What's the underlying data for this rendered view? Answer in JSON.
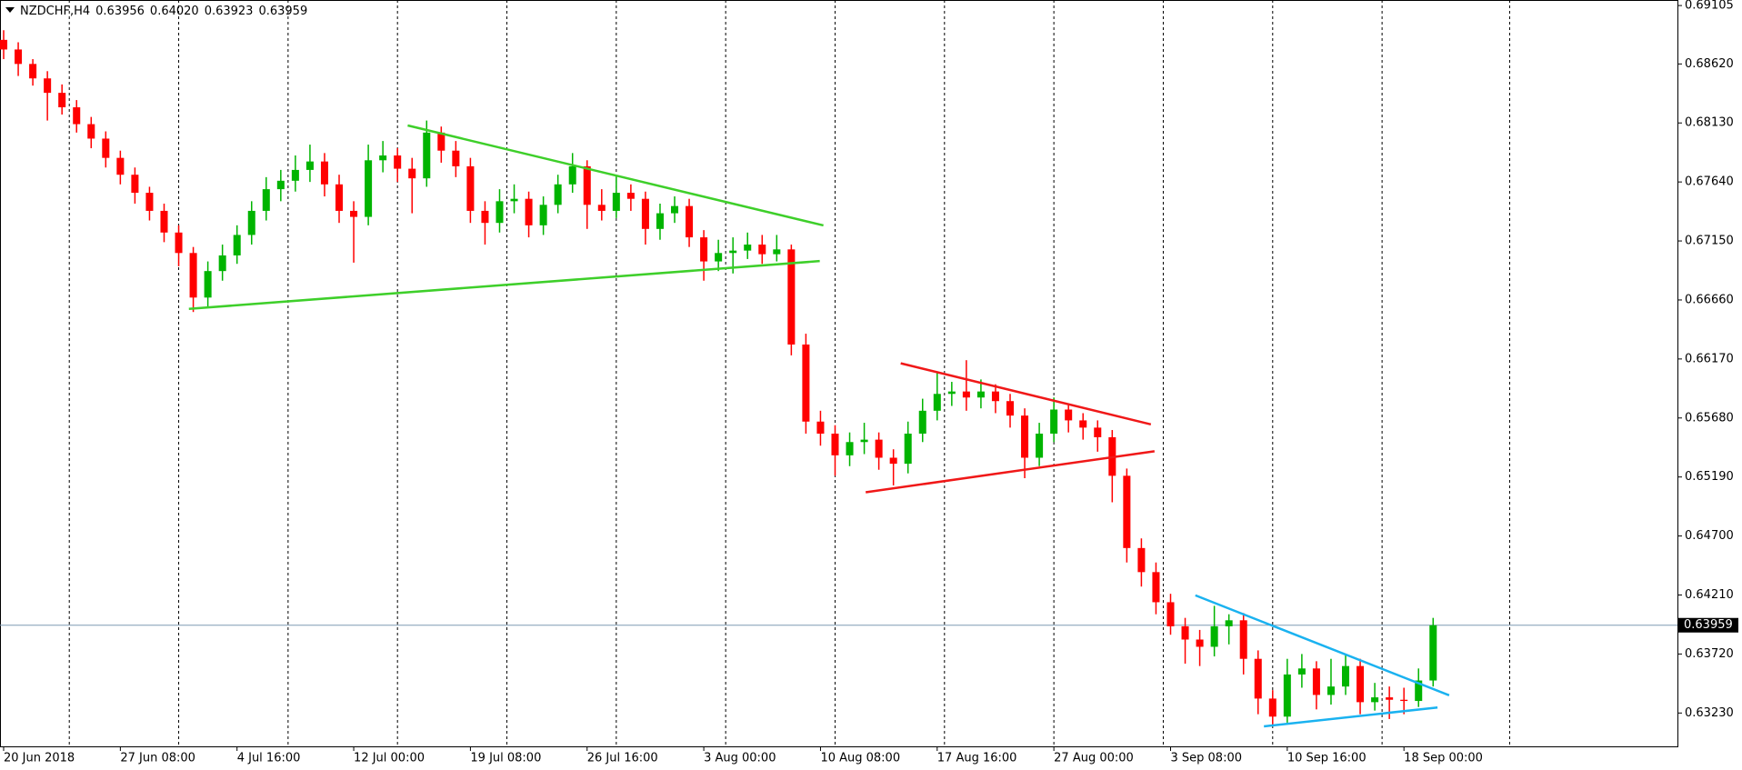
{
  "chart_data": {
    "type": "candlestick",
    "title": "NZDCHF,H4",
    "quote": [
      0.63956,
      {
        "value": 0.6402,
        "label": "0.64020"
      },
      0.63923,
      0.63959
    ],
    "bull_color": "#00b400",
    "bear_color": "#ff0000",
    "candles": [
      [
        0.6882,
        0.689,
        0.6866,
        0.6874
      ],
      [
        0.6874,
        0.688,
        0.6852,
        0.6862
      ],
      [
        0.6862,
        0.6866,
        0.6844,
        0.685
      ],
      [
        0.685,
        0.6856,
        0.6815,
        0.6838
      ],
      [
        0.6838,
        0.6845,
        0.682,
        0.6826
      ],
      [
        0.6826,
        0.6832,
        0.6805,
        0.6812
      ],
      [
        0.6812,
        0.6818,
        0.6792,
        0.68
      ],
      [
        0.68,
        0.6806,
        0.6776,
        0.6784
      ],
      [
        0.6784,
        0.679,
        0.6762,
        0.677
      ],
      [
        0.677,
        0.6776,
        0.6746,
        0.6755
      ],
      [
        0.6755,
        0.676,
        0.6732,
        0.674
      ],
      [
        0.674,
        0.6746,
        0.6714,
        0.6722
      ],
      [
        0.6722,
        0.6728,
        0.6694,
        0.6705
      ],
      [
        0.6705,
        0.671,
        0.6656,
        0.6668
      ],
      [
        0.6668,
        0.6698,
        0.666,
        0.669
      ],
      [
        0.669,
        0.6712,
        0.6682,
        0.6703
      ],
      [
        0.6703,
        0.6728,
        0.6696,
        0.672
      ],
      [
        0.672,
        0.6748,
        0.6712,
        0.674
      ],
      [
        0.674,
        0.6768,
        0.6732,
        0.6758
      ],
      [
        0.6758,
        0.6774,
        0.6748,
        0.6765
      ],
      [
        0.6765,
        0.6786,
        0.6756,
        0.6774
      ],
      [
        0.6774,
        0.6795,
        0.6764,
        0.6781
      ],
      [
        0.6781,
        0.6788,
        0.6752,
        0.6762
      ],
      [
        0.6762,
        0.677,
        0.673,
        0.674
      ],
      [
        0.674,
        0.6748,
        0.6697,
        0.6735
      ],
      [
        0.6735,
        0.6795,
        0.6728,
        0.6782
      ],
      [
        0.6782,
        0.6798,
        0.6772,
        0.6786
      ],
      [
        0.6786,
        0.6792,
        0.6764,
        0.6775
      ],
      [
        0.6775,
        0.6784,
        0.6738,
        0.6767
      ],
      [
        0.6767,
        0.6815,
        0.676,
        0.6805
      ],
      [
        0.6805,
        0.681,
        0.678,
        0.679
      ],
      [
        0.679,
        0.6798,
        0.6768,
        0.6777
      ],
      [
        0.6777,
        0.6784,
        0.673,
        0.674
      ],
      [
        0.674,
        0.6748,
        0.6712,
        0.673
      ],
      [
        0.673,
        0.6758,
        0.6722,
        0.6748
      ],
      [
        0.6748,
        0.6762,
        0.6738,
        0.675
      ],
      [
        0.675,
        0.6756,
        0.6718,
        0.6728
      ],
      [
        0.6728,
        0.6752,
        0.672,
        0.6745
      ],
      [
        0.6745,
        0.677,
        0.6738,
        0.6762
      ],
      [
        0.6762,
        0.6788,
        0.6755,
        0.6777
      ],
      [
        0.6777,
        0.6782,
        0.6725,
        0.6745
      ],
      [
        0.6745,
        0.6758,
        0.6732,
        0.674
      ],
      [
        0.674,
        0.677,
        0.6734,
        0.6755
      ],
      [
        0.6755,
        0.6762,
        0.674,
        0.675
      ],
      [
        0.675,
        0.6756,
        0.6712,
        0.6725
      ],
      [
        0.6725,
        0.6746,
        0.6716,
        0.6738
      ],
      [
        0.6738,
        0.6752,
        0.673,
        0.6744
      ],
      [
        0.6744,
        0.675,
        0.671,
        0.6718
      ],
      [
        0.6718,
        0.6724,
        0.6682,
        0.6698
      ],
      [
        0.6698,
        0.6716,
        0.669,
        0.6705
      ],
      [
        0.6705,
        0.6718,
        0.6688,
        0.6707
      ],
      [
        0.6707,
        0.6722,
        0.67,
        0.6712
      ],
      [
        0.6712,
        0.672,
        0.6696,
        0.6704
      ],
      [
        0.6704,
        0.672,
        0.6698,
        0.6708
      ],
      [
        0.6708,
        0.6712,
        0.662,
        0.6629
      ],
      [
        0.6629,
        0.6638,
        0.6555,
        0.6565
      ],
      [
        0.6565,
        0.6574,
        0.6545,
        0.6555
      ],
      [
        0.6555,
        0.6562,
        0.652,
        0.6537
      ],
      [
        0.6537,
        0.6556,
        0.6528,
        0.6548
      ],
      [
        0.6548,
        0.6564,
        0.6538,
        0.655
      ],
      [
        0.655,
        0.6556,
        0.6525,
        0.6535
      ],
      [
        0.6535,
        0.6542,
        0.6512,
        0.653
      ],
      [
        0.653,
        0.6565,
        0.6522,
        0.6555
      ],
      [
        0.6555,
        0.6584,
        0.6548,
        0.6574
      ],
      [
        0.6574,
        0.6606,
        0.6566,
        0.6588
      ],
      [
        0.6588,
        0.6598,
        0.6578,
        0.659
      ],
      [
        0.659,
        0.6616,
        0.6574,
        0.6585
      ],
      [
        0.6585,
        0.66,
        0.6576,
        0.659
      ],
      [
        0.659,
        0.6596,
        0.6572,
        0.6582
      ],
      [
        0.6582,
        0.6588,
        0.656,
        0.657
      ],
      [
        0.657,
        0.6576,
        0.6518,
        0.6535
      ],
      [
        0.6535,
        0.6564,
        0.6528,
        0.6555
      ],
      [
        0.6555,
        0.6585,
        0.6548,
        0.6575
      ],
      [
        0.6575,
        0.658,
        0.6556,
        0.6566
      ],
      [
        0.6566,
        0.6572,
        0.655,
        0.656
      ],
      [
        0.656,
        0.6566,
        0.654,
        0.6552
      ],
      [
        0.6552,
        0.6558,
        0.6498,
        0.652
      ],
      [
        0.652,
        0.6526,
        0.6448,
        0.646
      ],
      [
        0.646,
        0.6468,
        0.6428,
        0.644
      ],
      [
        0.644,
        0.6448,
        0.6405,
        0.6415
      ],
      [
        0.6415,
        0.6422,
        0.6388,
        0.6395
      ],
      [
        0.6395,
        0.6402,
        0.6364,
        0.6384
      ],
      [
        0.6384,
        0.6392,
        0.6362,
        0.6378
      ],
      [
        0.6378,
        0.6412,
        0.637,
        0.6395
      ],
      [
        0.6395,
        0.6405,
        0.638,
        0.64
      ],
      [
        0.64,
        0.6406,
        0.6355,
        0.6368
      ],
      [
        0.6368,
        0.6375,
        0.6322,
        0.6335
      ],
      [
        0.6335,
        0.6342,
        0.6312,
        0.632
      ],
      [
        0.632,
        0.6368,
        0.6315,
        0.6355
      ],
      [
        0.6355,
        0.6372,
        0.6344,
        0.636
      ],
      [
        0.636,
        0.6366,
        0.6326,
        0.6338
      ],
      [
        0.6338,
        0.6368,
        0.633,
        0.6345
      ],
      [
        0.6345,
        0.6372,
        0.6338,
        0.6362
      ],
      [
        0.6362,
        0.6368,
        0.6322,
        0.6332
      ],
      [
        0.6332,
        0.6348,
        0.6325,
        0.6336
      ],
      [
        0.6336,
        0.6345,
        0.6318,
        0.6334
      ],
      [
        0.6334,
        0.6344,
        0.6322,
        0.6333
      ],
      [
        0.6333,
        0.636,
        0.6328,
        0.635
      ],
      [
        0.635,
        0.6402,
        0.6345,
        0.63959
      ]
    ],
    "xlim": [
      -0.25,
      114.75
    ],
    "xticks": [
      {
        "value": 0,
        "label": "20 Jun 2018"
      },
      {
        "value": 8,
        "label": "27 Jun 08:00"
      },
      {
        "value": 16,
        "label": "4 Jul 16:00"
      },
      {
        "value": 24,
        "label": "12 Jul 00:00"
      },
      {
        "value": 32,
        "label": "19 Jul 08:00"
      },
      {
        "value": 40,
        "label": "26 Jul 16:00"
      },
      {
        "value": 48,
        "label": "3 Aug 00:00"
      },
      {
        "value": 56,
        "label": "10 Aug 08:00"
      },
      {
        "value": 64,
        "label": "17 Aug 16:00"
      },
      {
        "value": 72,
        "label": "27 Aug 00:00"
      },
      {
        "value": 80,
        "label": "3 Sep 08:00"
      },
      {
        "value": 88,
        "label": "10 Sep 16:00"
      },
      {
        "value": 96,
        "label": "18 Sep 00:00"
      }
    ],
    "xgrid": [
      4.5,
      12,
      19.5,
      27,
      34.5,
      42,
      49.5,
      57,
      64.5,
      72,
      79.5,
      87,
      94.5,
      103.25
    ],
    "ylim": [
      0.62953,
      0.69151
    ],
    "yticks": [
      0.69105,
      {
        "value": 0.6862,
        "label": "0.68620"
      },
      {
        "value": 0.6813,
        "label": "0.68130"
      },
      {
        "value": 0.6764,
        "label": "0.67640"
      },
      {
        "value": 0.6715,
        "label": "0.67150"
      },
      {
        "value": 0.6666,
        "label": "0.66660"
      },
      {
        "value": 0.6617,
        "label": "0.66170"
      },
      {
        "value": 0.6568,
        "label": "0.65680"
      },
      {
        "value": 0.6519,
        "label": "0.65190"
      },
      {
        "value": 0.647,
        "label": "0.64700"
      },
      {
        "value": 0.6421,
        "label": "0.64210"
      },
      {
        "value": 0.6372,
        "label": "0.63720"
      },
      {
        "value": 0.6323,
        "label": "0.63230"
      }
    ],
    "price_line": 0.63959,
    "price_line_color": "#7f9bb3",
    "trend_lines": [
      {
        "color": "#3ecf2a",
        "x": [
          27.7,
          56.2
        ],
        "y": [
          0.68109,
          0.67279
        ]
      },
      {
        "color": "#3ecf2a",
        "x": [
          12.7,
          55.95
        ],
        "y": [
          0.66586,
          0.66983
        ]
      },
      {
        "color": "#f01818",
        "x": [
          61.5,
          78.65
        ],
        "y": [
          0.66134,
          0.65627
        ]
      },
      {
        "color": "#f01818",
        "x": [
          59.1,
          78.9
        ],
        "y": [
          0.65063,
          0.65404
        ]
      },
      {
        "color": "#1ab2f0",
        "x": [
          81.7,
          99.1
        ],
        "y": [
          0.64207,
          0.63377
        ]
      },
      {
        "color": "#1ab2f0",
        "x": [
          86.4,
          98.3
        ],
        "y": [
          0.63119,
          0.63276
        ]
      }
    ]
  }
}
